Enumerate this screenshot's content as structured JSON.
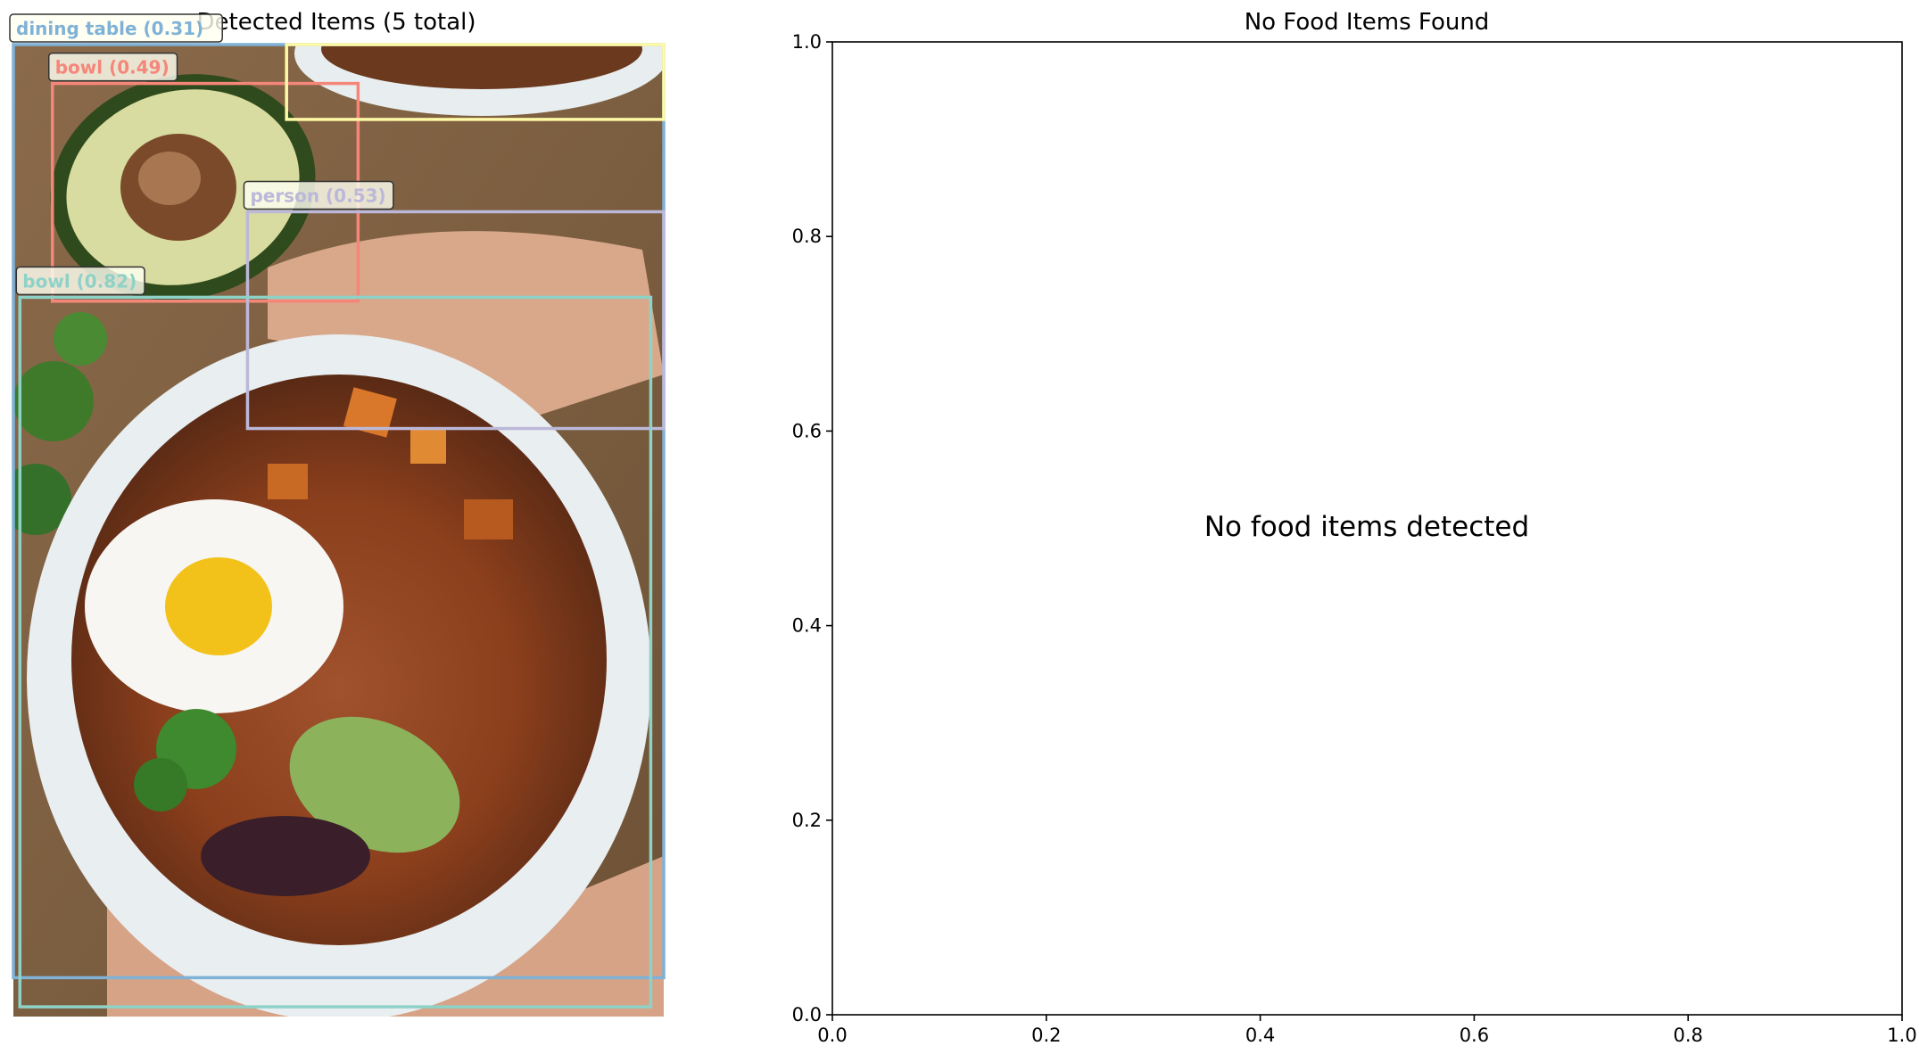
{
  "chart_data": [
    {
      "type": "image",
      "title": "Detected Items (5 total)",
      "detections": [
        {
          "label": "dining table (0.31)",
          "color": "#7fb2d6",
          "box": [
            0.0,
            0.0,
            1.0,
            0.96
          ]
        },
        {
          "label": "bowl (0.49)",
          "color": "#f4877a",
          "box": [
            0.06,
            0.04,
            0.53,
            0.264
          ]
        },
        {
          "label": "",
          "color": "#fffaa6",
          "box": [
            0.42,
            0.0,
            1.0,
            0.077
          ]
        },
        {
          "label": "person (0.53)",
          "color": "#bcb8d9",
          "box": [
            0.36,
            0.172,
            1.0,
            0.395
          ]
        },
        {
          "label": "bowl (0.82)",
          "color": "#8ed2c7",
          "box": [
            0.01,
            0.26,
            0.98,
            0.99
          ]
        }
      ]
    },
    {
      "type": "scatter",
      "title": "No Food Items Found",
      "xlabel": "",
      "ylabel": "",
      "xlim": [
        0.0,
        1.0
      ],
      "ylim": [
        0.0,
        1.0
      ],
      "xticks": [
        "0.0",
        "0.2",
        "0.4",
        "0.6",
        "0.8",
        "1.0"
      ],
      "yticks": [
        "0.0",
        "0.2",
        "0.4",
        "0.6",
        "0.8",
        "1.0"
      ],
      "annotation": "No food items detected",
      "series": []
    }
  ]
}
